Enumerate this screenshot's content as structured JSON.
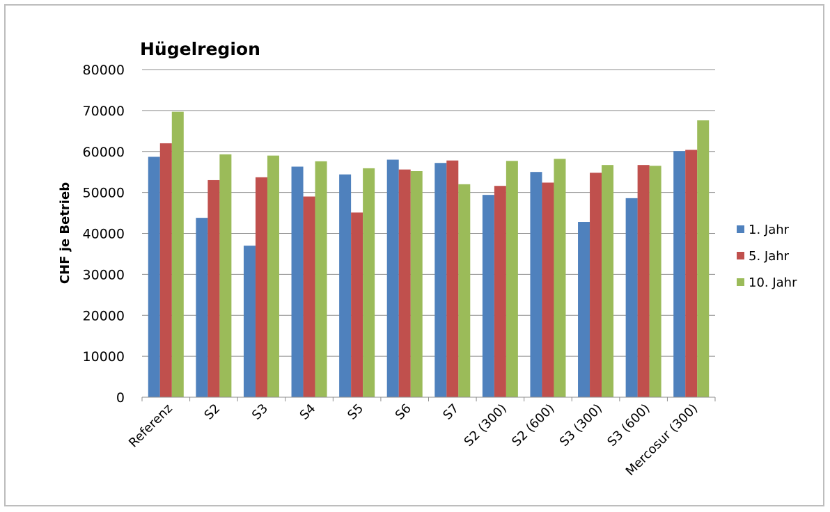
{
  "chart_data": {
    "type": "bar",
    "title": "Hügelregion",
    "xlabel": "",
    "ylabel": "CHF je Betrieb",
    "ylim": [
      0,
      80000
    ],
    "yticks": [
      0,
      10000,
      20000,
      30000,
      40000,
      50000,
      60000,
      70000,
      80000
    ],
    "grid": true,
    "legend_position": "right",
    "categories": [
      "Referenz",
      "S2",
      "S3",
      "S4",
      "S5",
      "S6",
      "S7",
      "S2 (300)",
      "S2 (600)",
      "S3 (300)",
      "S3 (600)",
      "Mercosur (300)"
    ],
    "series": [
      {
        "name": "1. Jahr",
        "color": "#4f81bd",
        "values": [
          58700,
          43800,
          37000,
          56300,
          54400,
          58000,
          57200,
          49400,
          55000,
          42800,
          48600,
          60100
        ]
      },
      {
        "name": "5. Jahr",
        "color": "#c0504d",
        "values": [
          62000,
          53000,
          53700,
          49000,
          45100,
          55600,
          57800,
          51600,
          52400,
          54800,
          56700,
          60400
        ]
      },
      {
        "name": "10. Jahr",
        "color": "#9bbb59",
        "values": [
          69700,
          59300,
          59000,
          57600,
          55900,
          55200,
          52000,
          57700,
          58200,
          56700,
          56500,
          67600
        ]
      }
    ]
  }
}
